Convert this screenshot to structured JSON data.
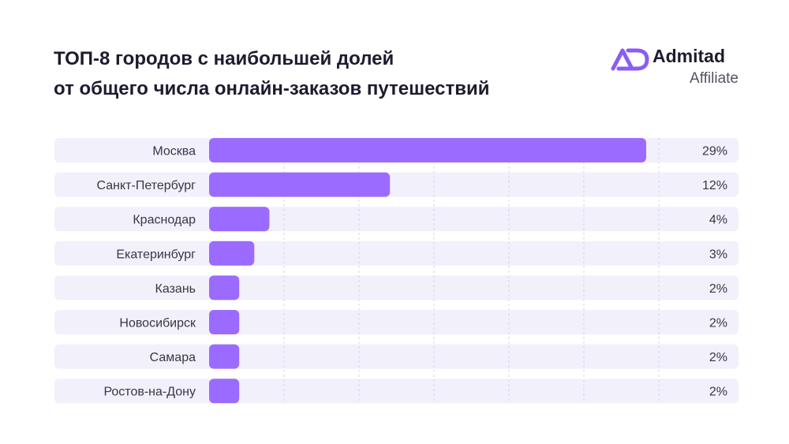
{
  "header": {
    "title_line1": "ТОП-8 городов с наибольшей долей",
    "title_line2": "от общего числа онлайн-заказов путешествий"
  },
  "logo": {
    "name": "Admitad",
    "subtitle": "Affiliate",
    "mark_text": "AD",
    "color": "#8b5cf6"
  },
  "chart_data": {
    "type": "bar",
    "orientation": "horizontal",
    "title": "ТОП-8 городов с наибольшей долей от общего числа онлайн-заказов путешествий",
    "categories": [
      "Москва",
      "Санкт-Петербург",
      "Краснодар",
      "Екатеринбург",
      "Казань",
      "Новосибирск",
      "Самара",
      "Ростов-на-Дону"
    ],
    "values": [
      29,
      12,
      4,
      3,
      2,
      2,
      2,
      2
    ],
    "value_labels": [
      "29%",
      "12%",
      "4%",
      "3%",
      "2%",
      "2%",
      "2%",
      "2%"
    ],
    "unit": "%",
    "xlim": [
      0,
      30
    ],
    "grid": true,
    "bar_color": "#9b6bff",
    "row_background": "#f2f0fa",
    "grid_color": "#d9d4ea"
  }
}
